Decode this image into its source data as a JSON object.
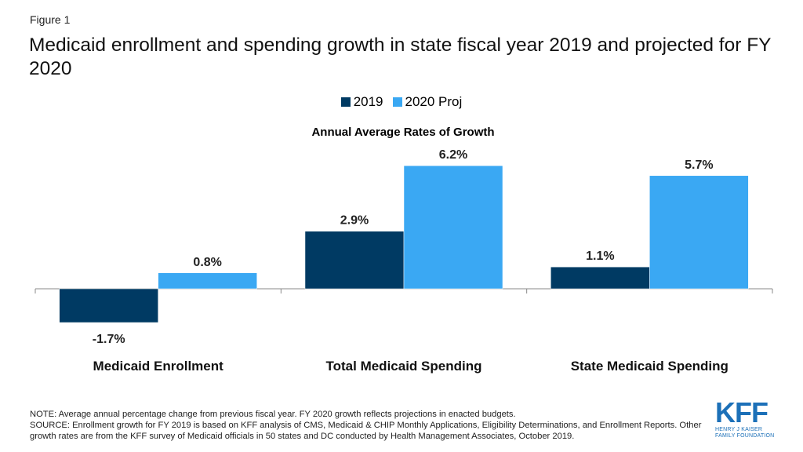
{
  "figure_label": "Figure 1",
  "title": "Medicaid enrollment and spending growth in state fiscal year 2019 and projected for FY 2020",
  "chart_data": {
    "type": "bar",
    "title": "Annual Average Rates of Growth",
    "categories": [
      "Medicaid Enrollment",
      "Total Medicaid Spending",
      "State Medicaid Spending"
    ],
    "series": [
      {
        "name": "2019",
        "values": [
          -1.7,
          2.9,
          1.1
        ],
        "labels": [
          "-1.7%",
          "2.9%",
          "1.1%"
        ],
        "color": "#003a63"
      },
      {
        "name": "2020 Proj",
        "values": [
          0.8,
          6.2,
          5.7
        ],
        "labels": [
          "0.8%",
          "6.2%",
          "5.7%"
        ],
        "color": "#3aa8f3"
      }
    ],
    "value_suffix": "%",
    "ylim": [
      -1.7,
      6.2
    ],
    "legend_position": "top",
    "grid": false
  },
  "note": {
    "line1": "NOTE: Average annual percentage change from previous fiscal year. FY 2020 growth reflects projections in enacted budgets.",
    "line2": "SOURCE: Enrollment growth for FY 2019 is based on KFF analysis of CMS, Medicaid & CHIP Monthly Applications, Eligibility Determinations, and Enrollment Reports. Other growth rates are from the KFF survey of Medicaid officials in 50 states and DC conducted by Health Management Associates, October 2019."
  },
  "logo": {
    "mark": "KFF",
    "line1": "HENRY J KAISER",
    "line2": "FAMILY FOUNDATION",
    "color": "#1c70b8"
  }
}
